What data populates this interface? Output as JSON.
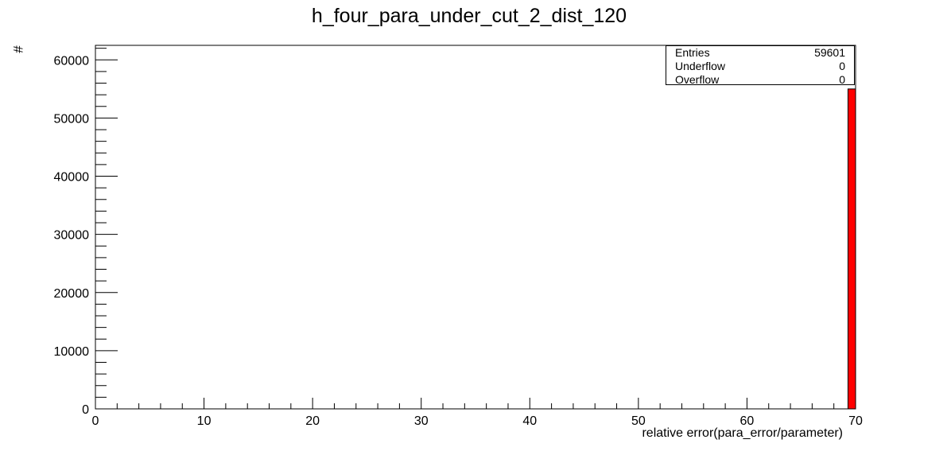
{
  "chart_data": {
    "type": "bar",
    "title": "h_four_para_under_cut_2_dist_120",
    "xlabel": "relative error(para_error/parameter)",
    "ylabel": "#",
    "xlim": [
      0,
      70
    ],
    "ylim": [
      0,
      62500
    ],
    "xticks": [
      "0",
      "10",
      "20",
      "30",
      "40",
      "50",
      "60",
      "70"
    ],
    "yticks": [
      "0",
      "10000",
      "20000",
      "30000",
      "40000",
      "50000",
      "60000"
    ],
    "bins": [
      {
        "x_low": 69.3,
        "x_high": 70,
        "value": 55000
      }
    ],
    "bar_color": "#ff0000",
    "stats": [
      {
        "label": "Entries",
        "value": "59601"
      },
      {
        "label": "Underflow",
        "value": "0"
      },
      {
        "label": "Overflow",
        "value": "0"
      }
    ]
  }
}
